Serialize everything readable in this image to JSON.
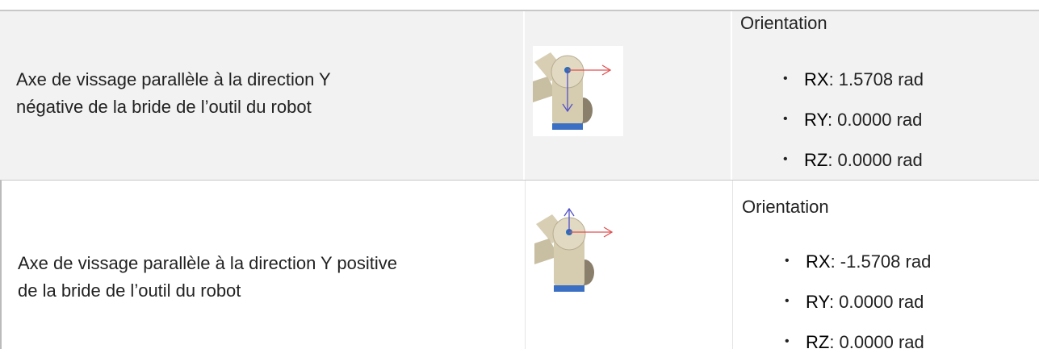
{
  "table": {
    "rows": [
      {
        "description": [
          "Axe de vissage parallèle à la direction Y",
          "négative de la bride de l’outil du robot"
        ],
        "heading": "Orientation",
        "items": [
          {
            "label": "RX",
            "value": ": 1.5708 rad"
          },
          {
            "label": "RY",
            "value": ": 0.0000 rad"
          },
          {
            "label": "RZ",
            "value": ": 0.0000 rad"
          }
        ]
      },
      {
        "description": [
          "Axe de vissage parallèle à la direction Y positive",
          "de la bride de l’outil du robot"
        ],
        "heading": "Orientation",
        "items": [
          {
            "label": "RX",
            "value": ": -1.5708 rad"
          },
          {
            "label": "RY",
            "value": ": 0.0000 rad"
          },
          {
            "label": "RZ",
            "value": ": 0.0000 rad"
          }
        ]
      }
    ]
  }
}
